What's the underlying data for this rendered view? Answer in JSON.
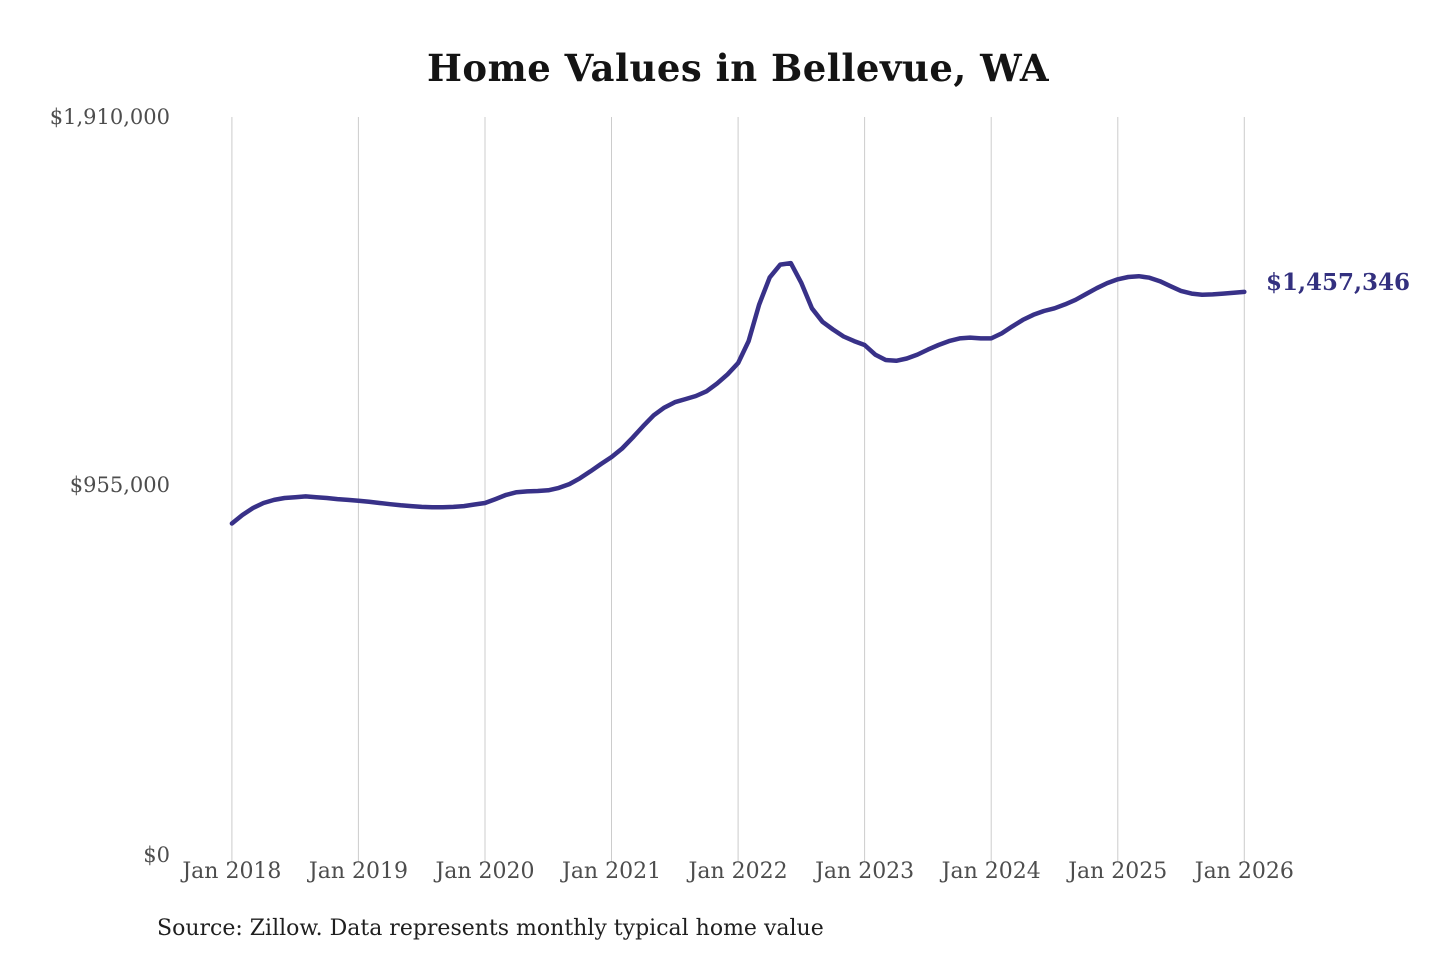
{
  "title": "Home Values in Bellevue, WA",
  "source_caption": "Source: Zillow. Data represents monthly typical home value",
  "annotation": {
    "end_value_label": "$1,457,346"
  },
  "y_axis": {
    "labels": [
      "$1,910,000",
      "$955,000",
      "$0"
    ],
    "values": [
      1910000,
      955000,
      0
    ]
  },
  "x_axis": {
    "labels": [
      "Jan 2018",
      "Jan 2019",
      "Jan 2020",
      "Jan 2021",
      "Jan 2022",
      "Jan 2023",
      "Jan 2024",
      "Jan 2025",
      "Jan 2026"
    ]
  },
  "colors": {
    "line": "#383188",
    "annotation_text": "#33307f",
    "grid": "#cccccc",
    "axis_text": "#4d4d4d",
    "title_text": "#141414"
  },
  "chart_data": {
    "type": "line",
    "title": "Home Values in Bellevue, WA",
    "series_name": "Monthly typical home value (USD)",
    "legend": "none",
    "grid": "vertical-only",
    "ylim": [
      0,
      1910000
    ],
    "yticks": [
      {
        "value": 1910000,
        "label": "$1,910,000"
      },
      {
        "value": 955000,
        "label": "$955,000"
      },
      {
        "value": 0,
        "label": "$0"
      }
    ],
    "xticks": [
      "Jan 2018",
      "Jan 2019",
      "Jan 2020",
      "Jan 2021",
      "Jan 2022",
      "Jan 2023",
      "Jan 2024",
      "Jan 2025",
      "Jan 2026"
    ],
    "end_label": "$1,457,346",
    "x": [
      "2018-01",
      "2018-02",
      "2018-03",
      "2018-04",
      "2018-05",
      "2018-06",
      "2018-07",
      "2018-08",
      "2018-09",
      "2018-10",
      "2018-11",
      "2018-12",
      "2019-01",
      "2019-02",
      "2019-03",
      "2019-04",
      "2019-05",
      "2019-06",
      "2019-07",
      "2019-08",
      "2019-09",
      "2019-10",
      "2019-11",
      "2019-12",
      "2020-01",
      "2020-02",
      "2020-03",
      "2020-04",
      "2020-05",
      "2020-06",
      "2020-07",
      "2020-08",
      "2020-09",
      "2020-10",
      "2020-11",
      "2020-12",
      "2021-01",
      "2021-02",
      "2021-03",
      "2021-04",
      "2021-05",
      "2021-06",
      "2021-07",
      "2021-08",
      "2021-09",
      "2021-10",
      "2021-11",
      "2021-12",
      "2022-01",
      "2022-02",
      "2022-03",
      "2022-04",
      "2022-05",
      "2022-06",
      "2022-07",
      "2022-08",
      "2022-09",
      "2022-10",
      "2022-11",
      "2022-12",
      "2023-01",
      "2023-02",
      "2023-03",
      "2023-04",
      "2023-05",
      "2023-06",
      "2023-07",
      "2023-08",
      "2023-09",
      "2023-10",
      "2023-11",
      "2023-12",
      "2024-01",
      "2024-02",
      "2024-03",
      "2024-04",
      "2024-05",
      "2024-06",
      "2024-07",
      "2024-08",
      "2024-09",
      "2024-10",
      "2024-11",
      "2024-12",
      "2025-01",
      "2025-02",
      "2025-03",
      "2025-04",
      "2025-05",
      "2025-06",
      "2025-07",
      "2025-08",
      "2025-09",
      "2025-10",
      "2025-11",
      "2025-12",
      "2026-01"
    ],
    "values": [
      858000,
      880000,
      898000,
      911000,
      919000,
      924000,
      926000,
      928000,
      926000,
      924000,
      921000,
      919000,
      917000,
      914000,
      911000,
      908000,
      905000,
      903000,
      901000,
      900000,
      900000,
      901000,
      903000,
      907000,
      911000,
      921000,
      932000,
      939000,
      941000,
      942000,
      944000,
      950000,
      960000,
      975000,
      993000,
      1012000,
      1030000,
      1052000,
      1080000,
      1110000,
      1138000,
      1158000,
      1172000,
      1180000,
      1188000,
      1200000,
      1220000,
      1244000,
      1273000,
      1330000,
      1425000,
      1495000,
      1528000,
      1532000,
      1480000,
      1415000,
      1380000,
      1360000,
      1342000,
      1330000,
      1320000,
      1295000,
      1281000,
      1279000,
      1285000,
      1295000,
      1308000,
      1320000,
      1330000,
      1337000,
      1339000,
      1337000,
      1337000,
      1350000,
      1368000,
      1385000,
      1398000,
      1408000,
      1415000,
      1425000,
      1437000,
      1452000,
      1467000,
      1480000,
      1490000,
      1496000,
      1498000,
      1494000,
      1485000,
      1472000,
      1460000,
      1453000,
      1450000,
      1451000,
      1453000,
      1455000,
      1457346
    ]
  }
}
